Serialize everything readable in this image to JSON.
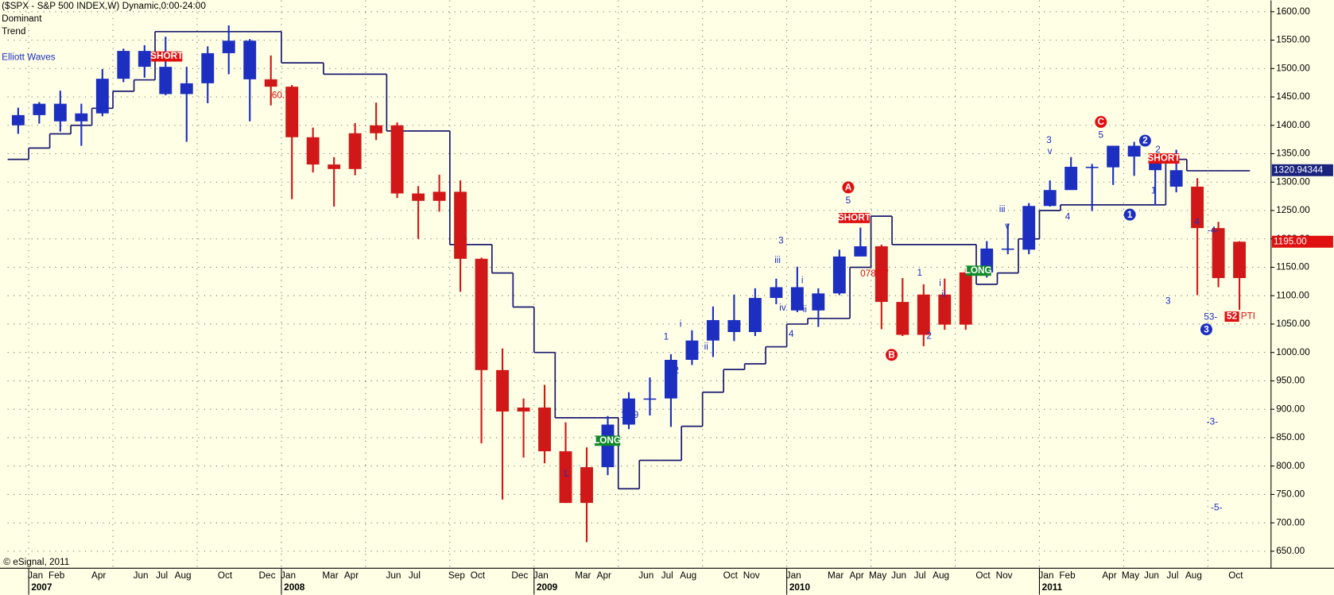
{
  "chart_data": {
    "type": "ohlc",
    "title": "($SPX - S&P 500 INDEX,W) Dynamic,0:00-24:00",
    "subtitle_lines": [
      "Dominant",
      "Trend"
    ],
    "study_label": "Elliott Waves",
    "copyright": "© eSignal, 2011",
    "x": [
      "2006-12",
      "2007-01",
      "2007-02",
      "2007-03",
      "2007-04",
      "2007-05",
      "2007-06",
      "2007-07",
      "2007-08",
      "2007-09",
      "2007-10",
      "2007-11",
      "2007-12",
      "2008-01",
      "2008-02",
      "2008-03",
      "2008-04",
      "2008-05",
      "2008-06",
      "2008-07",
      "2008-08",
      "2008-09",
      "2008-10",
      "2008-11",
      "2008-12",
      "2009-01",
      "2009-02",
      "2009-03",
      "2009-04",
      "2009-05",
      "2009-06",
      "2009-07",
      "2009-08",
      "2009-09",
      "2009-10",
      "2009-11",
      "2009-12",
      "2010-01",
      "2010-02",
      "2010-03",
      "2010-04",
      "2010-05",
      "2010-06",
      "2010-07",
      "2010-08",
      "2010-09",
      "2010-10",
      "2010-11",
      "2010-12",
      "2011-01",
      "2011-02",
      "2011-03",
      "2011-04",
      "2011-05",
      "2011-06",
      "2011-07",
      "2011-08",
      "2011-09",
      "2011-10"
    ],
    "open": [
      1400,
      1418,
      1438,
      1407,
      1421,
      1482,
      1531,
      1503,
      1455,
      1474,
      1527,
      1549,
      1481,
      1468,
      1379,
      1331,
      1323,
      1386,
      1400,
      1280,
      1267,
      1283,
      1165,
      969,
      896,
      903,
      826,
      735,
      798,
      873,
      919,
      919,
      987,
      1021,
      1057,
      1036,
      1096,
      1115,
      1074,
      1104,
      1169,
      1187,
      1089,
      1031,
      1102,
      1049,
      1141,
      1183,
      1181,
      1258,
      1286,
      1327,
      1326,
      1364,
      1345,
      1321,
      1292,
      1219,
      1131
    ],
    "high": [
      1431,
      1441,
      1461,
      1438,
      1499,
      1535,
      1541,
      1556,
      1503,
      1539,
      1576,
      1552,
      1523,
      1471,
      1396,
      1344,
      1404,
      1440,
      1405,
      1293,
      1313,
      1303,
      1167,
      1007,
      919,
      943,
      877,
      833,
      888,
      930,
      956,
      997,
      1039,
      1081,
      1102,
      1113,
      1130,
      1151,
      1113,
      1181,
      1220,
      1190,
      1131,
      1120,
      1130,
      1148,
      1196,
      1227,
      1263,
      1303,
      1344,
      1332,
      1364,
      1371,
      1346,
      1357,
      1307,
      1230,
      1196
    ],
    "low": [
      1385,
      1403,
      1389,
      1364,
      1416,
      1476,
      1484,
      1453,
      1371,
      1439,
      1490,
      1407,
      1435,
      1270,
      1317,
      1257,
      1312,
      1374,
      1272,
      1200,
      1248,
      1107,
      840,
      741,
      815,
      805,
      735,
      666,
      784,
      865,
      889,
      869,
      978,
      992,
      1020,
      1029,
      1085,
      1071,
      1045,
      1101,
      1170,
      1041,
      1029,
      1011,
      1040,
      1040,
      1132,
      1173,
      1173,
      1257,
      1294,
      1249,
      1295,
      1311,
      1259,
      1282,
      1101,
      1115,
      1075
    ],
    "close": [
      1418,
      1438,
      1407,
      1421,
      1482,
      1531,
      1503,
      1455,
      1474,
      1527,
      1549,
      1481,
      1468,
      1379,
      1331,
      1323,
      1386,
      1400,
      1280,
      1267,
      1283,
      1165,
      969,
      896,
      903,
      826,
      735,
      798,
      873,
      919,
      919,
      987,
      1021,
      1057,
      1036,
      1096,
      1115,
      1074,
      1104,
      1169,
      1187,
      1089,
      1031,
      1102,
      1049,
      1141,
      1183,
      1181,
      1258,
      1286,
      1327,
      1326,
      1364,
      1345,
      1321,
      1292,
      1219,
      1131,
      1195
    ],
    "bar_colors": [
      "#1c2fc0",
      "#1c2fc0",
      "#1c2fc0",
      "#1c2fc0",
      "#1c2fc0",
      "#1c2fc0",
      "#1c2fc0",
      "#1c2fc0",
      "#1c2fc0",
      "#1c2fc0",
      "#1c2fc0",
      "#1c2fc0",
      "#d01818",
      "#d01818",
      "#d01818",
      "#d01818",
      "#d01818",
      "#d01818",
      "#d01818",
      "#d01818",
      "#d01818",
      "#d01818",
      "#d01818",
      "#d01818",
      "#d01818",
      "#d01818",
      "#d01818",
      "#d01818",
      "#1c2fc0",
      "#1c2fc0",
      "#1c2fc0",
      "#1c2fc0",
      "#1c2fc0",
      "#1c2fc0",
      "#1c2fc0",
      "#1c2fc0",
      "#1c2fc0",
      "#1c2fc0",
      "#1c2fc0",
      "#1c2fc0",
      "#1c2fc0",
      "#d01818",
      "#d01818",
      "#d01818",
      "#d01818",
      "#d01818",
      "#1c2fc0",
      "#1c2fc0",
      "#1c2fc0",
      "#1c2fc0",
      "#1c2fc0",
      "#1c2fc0",
      "#1c2fc0",
      "#1c2fc0",
      "#1c2fc0",
      "#1c2fc0",
      "#d01818",
      "#d01818",
      "#d01818"
    ],
    "stop": {
      "color": "#1a1a70",
      "values": [
        1340,
        1360,
        1385,
        1400,
        1430,
        1460,
        1480,
        1565,
        1565,
        1565,
        1565,
        1565,
        1565,
        1510,
        1510,
        1490,
        1490,
        1490,
        1390,
        1390,
        1390,
        1190,
        1190,
        1140,
        1080,
        1000,
        885,
        885,
        885,
        760,
        810,
        810,
        870,
        930,
        970,
        980,
        1010,
        1050,
        1060,
        1060,
        1150,
        1240,
        1190,
        1190,
        1190,
        1190,
        1120,
        1140,
        1200,
        1250,
        1260,
        1260,
        1260,
        1260,
        1260,
        1340,
        1320,
        1320,
        1320
      ]
    },
    "xlim": [
      "2006-12",
      "2011-12"
    ],
    "ylim": [
      620,
      1620
    ],
    "yticks": [
      {
        "value": 650,
        "label": "650.00"
      },
      {
        "value": 700,
        "label": "700.00"
      },
      {
        "value": 750,
        "label": "750.00"
      },
      {
        "value": 800,
        "label": "800.00"
      },
      {
        "value": 850,
        "label": "850.00"
      },
      {
        "value": 900,
        "label": "900.00"
      },
      {
        "value": 950,
        "label": "950.00"
      },
      {
        "value": 1000,
        "label": "1000.00"
      },
      {
        "value": 1050,
        "label": "1050.00"
      },
      {
        "value": 1100,
        "label": "1100.00"
      },
      {
        "value": 1150,
        "label": "1150.00"
      },
      {
        "value": 1200,
        "label": "1200.00"
      },
      {
        "value": 1250,
        "label": "1250.00"
      },
      {
        "value": 1300,
        "label": "1300.00"
      },
      {
        "value": 1350,
        "label": "1350.00"
      },
      {
        "value": 1400,
        "label": "1400.00"
      },
      {
        "value": 1450,
        "label": "1450.00"
      },
      {
        "value": 1500,
        "label": "1500.00"
      },
      {
        "value": 1550,
        "label": "1550.00"
      },
      {
        "value": 1600,
        "label": "1600.00"
      }
    ],
    "xticks": [
      {
        "value": "2007-01",
        "label": "Jan"
      },
      {
        "value": "2007-02",
        "label": "Feb"
      },
      {
        "value": "2007-04",
        "label": "Apr"
      },
      {
        "value": "2007-06",
        "label": "Jun"
      },
      {
        "value": "2007-07",
        "label": "Jul"
      },
      {
        "value": "2007-08",
        "label": "Aug"
      },
      {
        "value": "2007-10",
        "label": "Oct"
      },
      {
        "value": "2007-12",
        "label": "Dec"
      },
      {
        "value": "2008-01",
        "label": "Jan"
      },
      {
        "value": "2008-03",
        "label": "Mar"
      },
      {
        "value": "2008-04",
        "label": "Apr"
      },
      {
        "value": "2008-06",
        "label": "Jun"
      },
      {
        "value": "2008-07",
        "label": "Jul"
      },
      {
        "value": "2008-09",
        "label": "Sep"
      },
      {
        "value": "2008-10",
        "label": "Oct"
      },
      {
        "value": "2008-12",
        "label": "Dec"
      },
      {
        "value": "2009-01",
        "label": "Jan"
      },
      {
        "value": "2009-03",
        "label": "Mar"
      },
      {
        "value": "2009-04",
        "label": "Apr"
      },
      {
        "value": "2009-06",
        "label": "Jun"
      },
      {
        "value": "2009-07",
        "label": "Jul"
      },
      {
        "value": "2009-08",
        "label": "Aug"
      },
      {
        "value": "2009-10",
        "label": "Oct"
      },
      {
        "value": "2009-11",
        "label": "Nov"
      },
      {
        "value": "2010-01",
        "label": "Jan"
      },
      {
        "value": "2010-03",
        "label": "Mar"
      },
      {
        "value": "2010-04",
        "label": "Apr"
      },
      {
        "value": "2010-05",
        "label": "May"
      },
      {
        "value": "2010-06",
        "label": "Jun"
      },
      {
        "value": "2010-07",
        "label": "Jul"
      },
      {
        "value": "2010-08",
        "label": "Aug"
      },
      {
        "value": "2010-10",
        "label": "Oct"
      },
      {
        "value": "2010-11",
        "label": "Nov"
      },
      {
        "value": "2011-01",
        "label": "Jan"
      },
      {
        "value": "2011-02",
        "label": "Feb"
      },
      {
        "value": "2011-04",
        "label": "Apr"
      },
      {
        "value": "2011-05",
        "label": "May"
      },
      {
        "value": "2011-06",
        "label": "Jun"
      },
      {
        "value": "2011-07",
        "label": "Jul"
      },
      {
        "value": "2011-08",
        "label": "Aug"
      },
      {
        "value": "2011-10",
        "label": "Oct"
      }
    ],
    "year_labels": [
      {
        "value": "2007-01",
        "label": "2007"
      },
      {
        "value": "2008-01",
        "label": "2008"
      },
      {
        "value": "2009-01",
        "label": "2009"
      },
      {
        "value": "2010-01",
        "label": "2010"
      },
      {
        "value": "2011-01",
        "label": "2011"
      }
    ],
    "xgrid": [
      "2007-01",
      "2007-05",
      "2007-09",
      "2008-01",
      "2008-05",
      "2008-09",
      "2009-01",
      "2009-05",
      "2009-09",
      "2010-01",
      "2010-05",
      "2010-09",
      "2011-01",
      "2011-05",
      "2011-09"
    ],
    "grid": true,
    "price_tags": [
      {
        "value": 1320.94344,
        "label": "1320.94344",
        "color": "#1a237e"
      },
      {
        "value": 1195,
        "label": "1195.00",
        "color": "#e01010"
      }
    ],
    "annotations": [
      "SHORT",
      "SHORT",
      "SHORT",
      "LONG",
      "LONG",
      "A",
      "B",
      "C",
      "1",
      "2",
      "3",
      "5",
      "3",
      "iii",
      "iv",
      "4",
      "ii",
      "i",
      "1",
      "2",
      "i",
      "ii",
      "L",
      "1",
      "2",
      "i",
      "ii",
      "iii",
      "v",
      "3",
      "v",
      "4",
      "5",
      "1",
      "2",
      "3",
      "4",
      "-4-",
      "53-",
      "-3-",
      "-5-",
      "60.71-",
      "078.77",
      "1.29",
      "52",
      "PTI"
    ]
  }
}
